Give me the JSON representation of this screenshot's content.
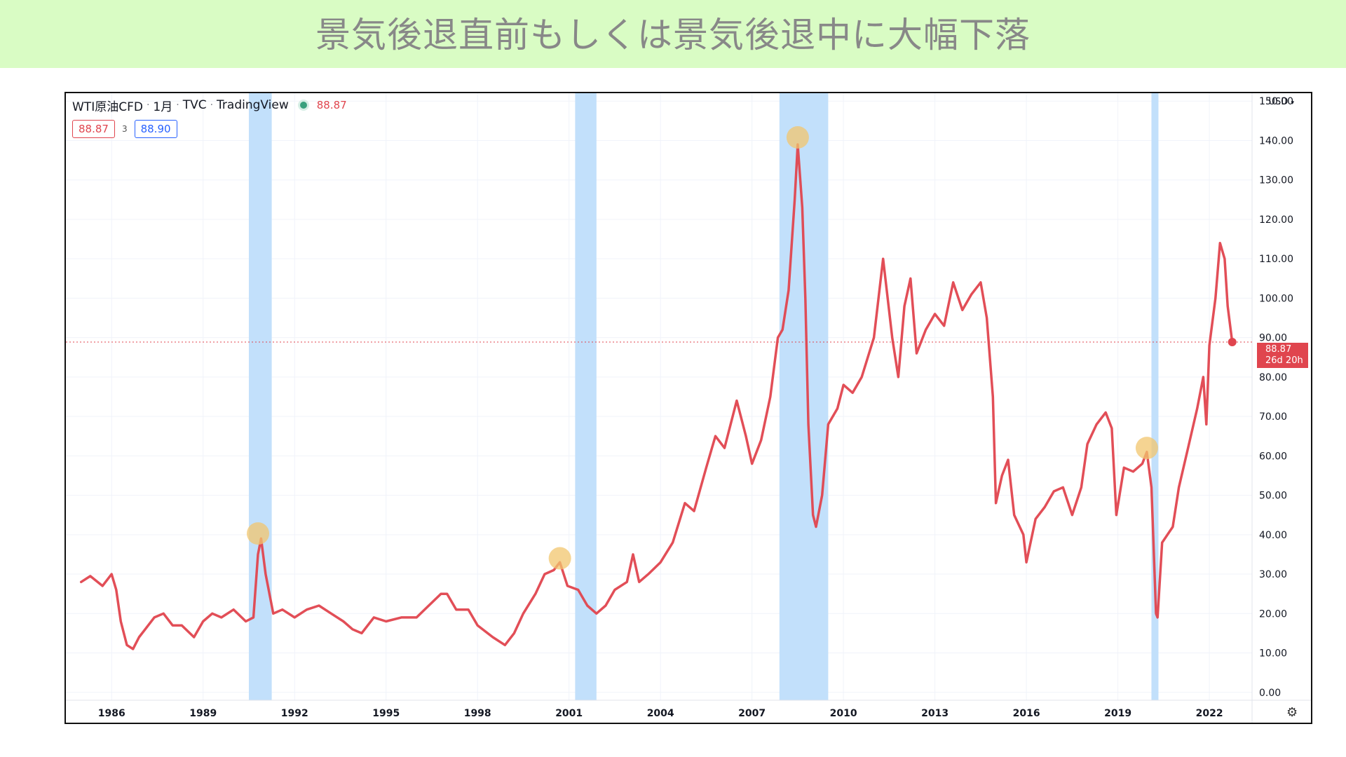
{
  "banner": {
    "title": "景気後退直前もしくは景気後退中に大幅下落"
  },
  "header": {
    "symbol": "WTI原油CFD",
    "interval": "1月",
    "exchange": "TVC",
    "source": "TradingView",
    "last_price": "88.87",
    "bid": "88.87",
    "spread": "3",
    "ask": "88.90",
    "currency": "USD"
  },
  "price_tag": {
    "price": "88.87",
    "countdown": "26d 20h"
  },
  "colors": {
    "line": "#e0454e",
    "recession": "#c2e0fb",
    "peak_marker": "#f2c66e",
    "banner": "#d9fcc4"
  },
  "chart_data": {
    "type": "line",
    "series": [
      {
        "values": [
          [
            1985.0,
            28
          ],
          [
            1985.3,
            29.5
          ],
          [
            1985.7,
            27
          ],
          [
            1986.0,
            30
          ],
          [
            1986.15,
            26
          ],
          [
            1986.3,
            18
          ],
          [
            1986.5,
            12
          ],
          [
            1986.7,
            11
          ],
          [
            1986.9,
            14
          ],
          [
            1987.1,
            16
          ],
          [
            1987.4,
            19
          ],
          [
            1987.7,
            20
          ],
          [
            1988.0,
            17
          ],
          [
            1988.3,
            17
          ],
          [
            1988.7,
            14
          ],
          [
            1989.0,
            18
          ],
          [
            1989.3,
            20
          ],
          [
            1989.6,
            19
          ],
          [
            1990.0,
            21
          ],
          [
            1990.4,
            18
          ],
          [
            1990.65,
            19
          ],
          [
            1990.8,
            35
          ],
          [
            1990.9,
            39
          ],
          [
            1991.05,
            30
          ],
          [
            1991.3,
            20
          ],
          [
            1991.6,
            21
          ],
          [
            1992.0,
            19
          ],
          [
            1992.4,
            21
          ],
          [
            1992.8,
            22
          ],
          [
            1993.2,
            20
          ],
          [
            1993.6,
            18
          ],
          [
            1993.9,
            16
          ],
          [
            1994.2,
            15
          ],
          [
            1994.6,
            19
          ],
          [
            1995.0,
            18
          ],
          [
            1995.5,
            19
          ],
          [
            1996.0,
            19
          ],
          [
            1996.4,
            22
          ],
          [
            1996.8,
            25
          ],
          [
            1997.0,
            25
          ],
          [
            1997.3,
            21
          ],
          [
            1997.7,
            21
          ],
          [
            1998.0,
            17
          ],
          [
            1998.5,
            14
          ],
          [
            1998.9,
            12
          ],
          [
            1999.2,
            15
          ],
          [
            1999.5,
            20
          ],
          [
            1999.9,
            25
          ],
          [
            2000.2,
            30
          ],
          [
            2000.5,
            31
          ],
          [
            2000.7,
            33
          ],
          [
            2000.95,
            27
          ],
          [
            2001.3,
            26
          ],
          [
            2001.6,
            22
          ],
          [
            2001.9,
            20
          ],
          [
            2002.2,
            22
          ],
          [
            2002.5,
            26
          ],
          [
            2002.9,
            28
          ],
          [
            2003.1,
            35
          ],
          [
            2003.3,
            28
          ],
          [
            2003.6,
            30
          ],
          [
            2004.0,
            33
          ],
          [
            2004.4,
            38
          ],
          [
            2004.8,
            48
          ],
          [
            2005.1,
            46
          ],
          [
            2005.5,
            57
          ],
          [
            2005.8,
            65
          ],
          [
            2006.1,
            62
          ],
          [
            2006.5,
            74
          ],
          [
            2006.8,
            65
          ],
          [
            2007.0,
            58
          ],
          [
            2007.3,
            64
          ],
          [
            2007.6,
            75
          ],
          [
            2007.85,
            90
          ],
          [
            2008.0,
            92
          ],
          [
            2008.2,
            102
          ],
          [
            2008.4,
            125
          ],
          [
            2008.5,
            139
          ],
          [
            2008.65,
            123
          ],
          [
            2008.75,
            100
          ],
          [
            2008.85,
            68
          ],
          [
            2009.0,
            45
          ],
          [
            2009.1,
            42
          ],
          [
            2009.3,
            50
          ],
          [
            2009.5,
            68
          ],
          [
            2009.8,
            72
          ],
          [
            2010.0,
            78
          ],
          [
            2010.3,
            76
          ],
          [
            2010.6,
            80
          ],
          [
            2011.0,
            90
          ],
          [
            2011.3,
            110
          ],
          [
            2011.6,
            90
          ],
          [
            2011.8,
            80
          ],
          [
            2012.0,
            98
          ],
          [
            2012.2,
            105
          ],
          [
            2012.4,
            86
          ],
          [
            2012.7,
            92
          ],
          [
            2013.0,
            96
          ],
          [
            2013.3,
            93
          ],
          [
            2013.6,
            104
          ],
          [
            2013.9,
            97
          ],
          [
            2014.2,
            101
          ],
          [
            2014.5,
            104
          ],
          [
            2014.7,
            95
          ],
          [
            2014.9,
            75
          ],
          [
            2015.0,
            48
          ],
          [
            2015.2,
            55
          ],
          [
            2015.4,
            59
          ],
          [
            2015.6,
            45
          ],
          [
            2015.9,
            40
          ],
          [
            2016.0,
            33
          ],
          [
            2016.3,
            44
          ],
          [
            2016.6,
            47
          ],
          [
            2016.9,
            51
          ],
          [
            2017.2,
            52
          ],
          [
            2017.5,
            45
          ],
          [
            2017.8,
            52
          ],
          [
            2018.0,
            63
          ],
          [
            2018.3,
            68
          ],
          [
            2018.6,
            71
          ],
          [
            2018.8,
            67
          ],
          [
            2018.95,
            45
          ],
          [
            2019.2,
            57
          ],
          [
            2019.5,
            56
          ],
          [
            2019.8,
            58
          ],
          [
            2019.95,
            61
          ],
          [
            2020.1,
            52
          ],
          [
            2020.25,
            20
          ],
          [
            2020.3,
            19
          ],
          [
            2020.45,
            38
          ],
          [
            2020.8,
            42
          ],
          [
            2021.0,
            52
          ],
          [
            2021.3,
            62
          ],
          [
            2021.6,
            72
          ],
          [
            2021.8,
            80
          ],
          [
            2021.9,
            68
          ],
          [
            2022.0,
            88
          ],
          [
            2022.2,
            100
          ],
          [
            2022.35,
            114
          ],
          [
            2022.5,
            110
          ],
          [
            2022.6,
            98
          ],
          [
            2022.75,
            88.87
          ]
        ]
      }
    ],
    "recessions": [
      [
        1990.5,
        1991.25
      ],
      [
        2001.2,
        2001.9
      ],
      [
        2007.9,
        2009.5
      ],
      [
        2020.1,
        2020.33
      ]
    ],
    "peak_markers": [
      [
        1990.8,
        40.3
      ],
      [
        2000.7,
        34.0
      ],
      [
        2008.5,
        140.8
      ],
      [
        2019.95,
        62.0
      ]
    ],
    "last_value": 88.87,
    "x_ticks": [
      "1986",
      "1989",
      "1992",
      "1995",
      "1998",
      "2001",
      "2004",
      "2007",
      "2010",
      "2013",
      "2016",
      "2019",
      "2022"
    ],
    "y_ticks": [
      "0.00",
      "10.00",
      "20.00",
      "30.00",
      "40.00",
      "50.00",
      "60.00",
      "70.00",
      "80.00",
      "90.00",
      "100.00",
      "110.00",
      "120.00",
      "130.00",
      "140.00",
      "150.00"
    ],
    "xlim": [
      1984.5,
      2023.4
    ],
    "ylim": [
      -2,
      152
    ]
  }
}
